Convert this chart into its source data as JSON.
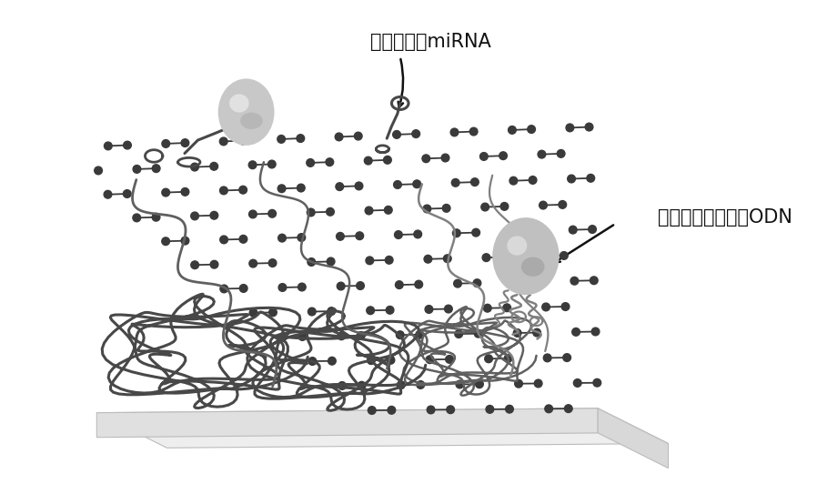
{
  "label1": "肺癌标志物miRNA",
  "label2": "金纳米小球修饰的ODN",
  "bg_color": "#ffffff",
  "graphene_atom_color": "#3a3a3a",
  "graphene_bond_color": "#3a3a3a",
  "platform_top_color": "#eeeeee",
  "platform_front_color": "#e0e0e0",
  "platform_right_color": "#d8d8d8",
  "platform_edge_color": "#bbbbbb",
  "ball1_color": "#c0c0c0",
  "ball1_highlight": "#e8e8e8",
  "ball2_color": "#b8b8b8",
  "ball2_highlight": "#dddddd",
  "dna_dark": "#484848",
  "dna_mid": "#606060",
  "dna_light": "#808080",
  "ann_color": "#111111",
  "font_size": 15,
  "figure_width": 8.98,
  "figure_height": 5.43
}
